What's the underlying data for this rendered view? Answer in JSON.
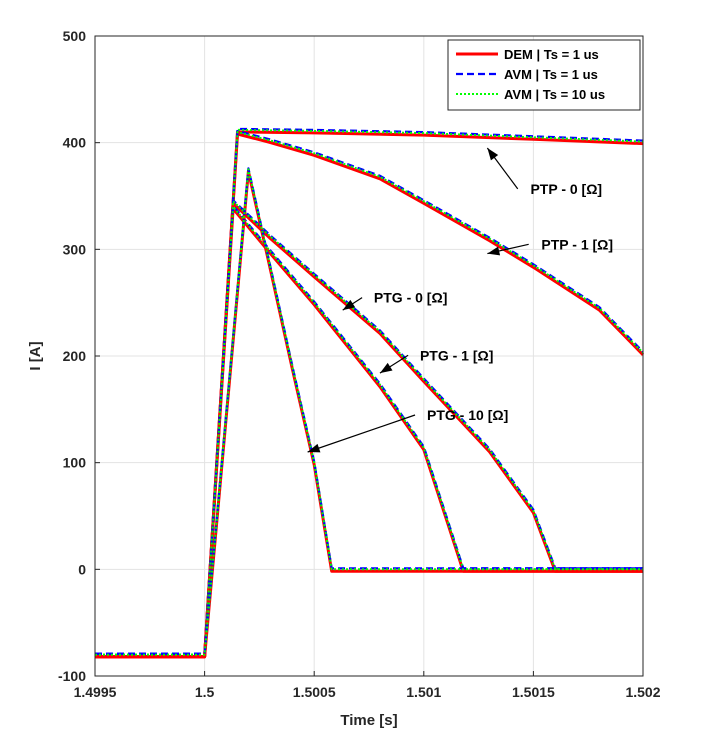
{
  "chart_data": {
    "type": "line",
    "xlabel": "Time [s]",
    "ylabel": "I [A]",
    "xlim": [
      1.4995,
      1.502
    ],
    "ylim": [
      -100,
      500
    ],
    "xticks": [
      1.4995,
      1.5,
      1.5005,
      1.501,
      1.5015,
      1.502
    ],
    "xtick_labels": [
      "1.4995",
      "1.5",
      "1.5005",
      "1.501",
      "1.5015",
      "1.502"
    ],
    "yticks": [
      -100,
      0,
      100,
      200,
      300,
      400,
      500
    ],
    "ytick_labels": [
      "-100",
      "0",
      "100",
      "200",
      "300",
      "400",
      "500"
    ],
    "grid": true,
    "legend_position": "top-right",
    "legend": [
      {
        "label": "DEM | Ts = 1 us",
        "color": "#ff0000",
        "style": "solid"
      },
      {
        "label": "AVM | Ts = 1 us",
        "color": "#0000ff",
        "style": "dashed"
      },
      {
        "label": "AVM | Ts = 10 us",
        "color": "#00ff00",
        "style": "dotted"
      }
    ],
    "cases": [
      {
        "name": "PTP - 0 [Ω]",
        "points": [
          [
            1.4995,
            -80
          ],
          [
            1.5,
            -80
          ],
          [
            1.50015,
            412
          ],
          [
            1.5005,
            411
          ],
          [
            1.501,
            409
          ],
          [
            1.5015,
            405
          ],
          [
            1.502,
            401
          ]
        ]
      },
      {
        "name": "PTP - 1 [Ω]",
        "points": [
          [
            1.4995,
            -80
          ],
          [
            1.5,
            -80
          ],
          [
            1.50015,
            410
          ],
          [
            1.5003,
            402
          ],
          [
            1.5005,
            390
          ],
          [
            1.5008,
            368
          ],
          [
            1.501,
            345
          ],
          [
            1.5013,
            310
          ],
          [
            1.5015,
            285
          ],
          [
            1.5018,
            245
          ],
          [
            1.502,
            203
          ]
        ]
      },
      {
        "name": "PTG - 0 [Ω]",
        "points": [
          [
            1.4995,
            -80
          ],
          [
            1.5,
            -80
          ],
          [
            1.50013,
            345
          ],
          [
            1.5003,
            312
          ],
          [
            1.5005,
            276
          ],
          [
            1.5008,
            223
          ],
          [
            1.501,
            178
          ],
          [
            1.5013,
            112
          ],
          [
            1.5015,
            55
          ],
          [
            1.5016,
            0
          ],
          [
            1.502,
            0
          ]
        ]
      },
      {
        "name": "PTG - 1 [Ω]",
        "points": [
          [
            1.4995,
            -80
          ],
          [
            1.5,
            -80
          ],
          [
            1.50013,
            340
          ],
          [
            1.5003,
            298
          ],
          [
            1.5005,
            250
          ],
          [
            1.5008,
            173
          ],
          [
            1.501,
            114
          ],
          [
            1.50118,
            0
          ],
          [
            1.502,
            0
          ]
        ]
      },
      {
        "name": "PTG - 10 [Ω]",
        "points": [
          [
            1.4995,
            -80
          ],
          [
            1.5,
            -80
          ],
          [
            1.5002,
            375
          ],
          [
            1.5003,
            283
          ],
          [
            1.5004,
            190
          ],
          [
            1.5005,
            100
          ],
          [
            1.50058,
            0
          ],
          [
            1.502,
            0
          ]
        ]
      }
    ],
    "annotations": [
      {
        "text": "PTP - 0 [Ω]",
        "text_at": [
          1.50165,
          352
        ],
        "arrow_to": [
          1.50129,
          395
        ]
      },
      {
        "text": "PTP - 1 [Ω]",
        "text_at": [
          1.5017,
          300
        ],
        "arrow_to": [
          1.50129,
          296
        ]
      },
      {
        "text": "PTG - 0 [Ω]",
        "text_at": [
          1.50094,
          250
        ],
        "arrow_to": [
          1.50063,
          243
        ]
      },
      {
        "text": "PTG - 1 [Ω]",
        "text_at": [
          1.50115,
          196
        ],
        "arrow_to": [
          1.5008,
          184
        ]
      },
      {
        "text": "PTG - 10 [Ω]",
        "text_at": [
          1.5012,
          140
        ],
        "arrow_to": [
          1.50047,
          110
        ]
      }
    ]
  }
}
